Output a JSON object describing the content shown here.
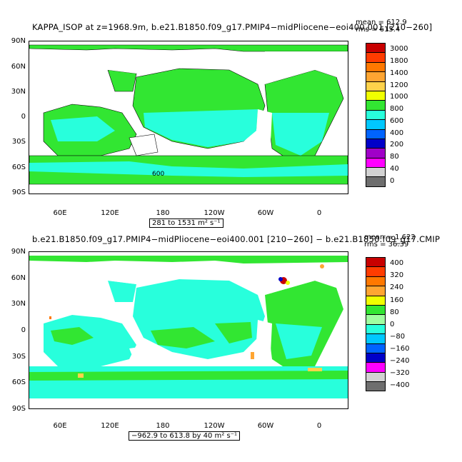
{
  "panel1": {
    "title": "KAPPA_ISOP at z=1968.9m, b.e21.B1850.f09_g17.PMIP4−midPliocene−eoi400.001 [210−260]",
    "mean": "mean = 612.9",
    "rms": "rms = 615.4",
    "range": "281 to 1531 m² s⁻¹",
    "contour_label": "600",
    "colorbar": {
      "labels": [
        "3000",
        "1800",
        "1400",
        "1200",
        "1000",
        "800",
        "600",
        "400",
        "200",
        "80",
        "40",
        "0"
      ],
      "colors": [
        "#c80000",
        "#ff3c00",
        "#ff7800",
        "#ffa532",
        "#ffd24b",
        "#f0ff00",
        "#32e632",
        "#28ffdc",
        "#00c8ff",
        "#0064ff",
        "#0000c8",
        "#a000c8",
        "#ff00ff",
        "#d2d2d2",
        "#6e6e6e"
      ]
    }
  },
  "panel2": {
    "title": "b.e21.B1850.f09_g17.PMIP4−midPliocene−eoi400.001 [210−260] − b.e21.B1850.f09_g17.CMIP",
    "mean": "mean = 1.622",
    "rms": "rms = 36.39",
    "range": "−962.9 to 613.8 by 40 m² s⁻¹",
    "colorbar": {
      "labels": [
        "400",
        "320",
        "240",
        "160",
        "80",
        "0",
        "−80",
        "−160",
        "−240",
        "−320",
        "−400"
      ],
      "colors": [
        "#c80000",
        "#ff3c00",
        "#ff7800",
        "#ffa532",
        "#f0ff00",
        "#32e632",
        "#a0ffa0",
        "#28ffdc",
        "#00c8ff",
        "#0064ff",
        "#0000c8",
        "#ff00ff",
        "#d2d2d2",
        "#6e6e6e"
      ]
    }
  },
  "axes": {
    "lat_ticks": [
      "90N",
      "60N",
      "30N",
      "0",
      "30S",
      "60S",
      "90S"
    ],
    "lon_ticks": [
      "60E",
      "120E",
      "180",
      "120W",
      "60W",
      "0"
    ]
  }
}
